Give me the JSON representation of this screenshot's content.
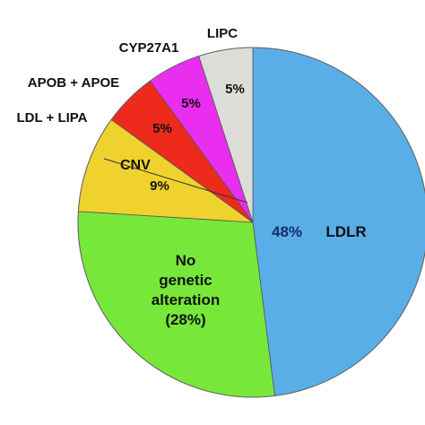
{
  "chart_data": {
    "type": "pie",
    "slices": [
      {
        "label": "LDLR",
        "value": 48,
        "value_text": "48%",
        "color": "#5aaee8"
      },
      {
        "label": "No genetic alteration",
        "label_lines": [
          "No",
          "genetic",
          "alteration",
          "(28%)"
        ],
        "value": 28,
        "color": "#77e83a"
      },
      {
        "label": "CNV",
        "value": 9,
        "value_text": "9%",
        "color": "#f0d22e"
      },
      {
        "label": "LDL + LIPA",
        "value": 0.0,
        "color": "#f0d22e"
      },
      {
        "label": "APOB + APOE",
        "value": 5,
        "value_text": "5%",
        "color": "#ee2a1c"
      },
      {
        "label": "CYP27A1",
        "value": 5,
        "value_text": "5%",
        "color": "#ea2ef0"
      },
      {
        "label": "LIPC",
        "value": 5,
        "value_text": "5%",
        "color": "#dcdcd8"
      }
    ]
  }
}
